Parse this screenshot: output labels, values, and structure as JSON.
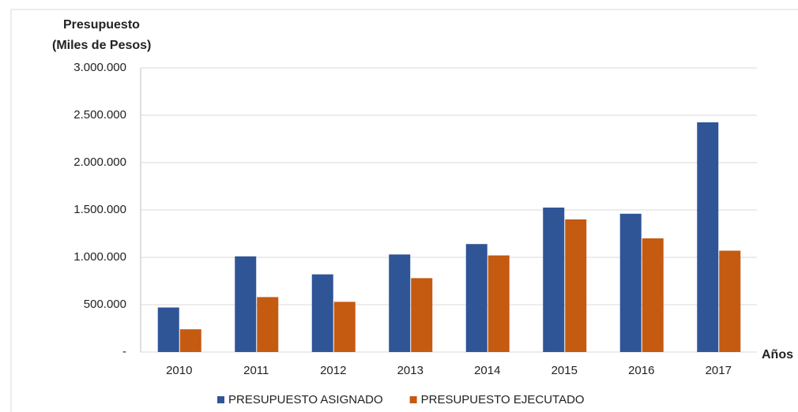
{
  "chart_data": {
    "type": "bar",
    "y_label": [
      "Presupuesto",
      "(Miles de Pesos)"
    ],
    "x_label": "Años",
    "categories": [
      "2010",
      "2011",
      "2012",
      "2013",
      "2014",
      "2015",
      "2016",
      "2017"
    ],
    "series": [
      {
        "name": "PRESUPUESTO ASIGNADO",
        "color": "#2f5597",
        "values": [
          470000,
          1010000,
          820000,
          1030000,
          1140000,
          1525000,
          1460000,
          2425000
        ]
      },
      {
        "name": "PRESUPUESTO EJECUTADO",
        "color": "#c55a11",
        "values": [
          240000,
          580000,
          530000,
          780000,
          1020000,
          1400000,
          1200000,
          1070000
        ]
      }
    ],
    "ylim": [
      0,
      3000000
    ],
    "yticks": [
      {
        "value": 0,
        "label": "-"
      },
      {
        "value": 500000,
        "label": "500.000"
      },
      {
        "value": 1000000,
        "label": "1.000.000"
      },
      {
        "value": 1500000,
        "label": "1.500.000"
      },
      {
        "value": 2000000,
        "label": "2.000.000"
      },
      {
        "value": 2500000,
        "label": "2.500.000"
      },
      {
        "value": 3000000,
        "label": "3.000.000"
      }
    ],
    "grid": true,
    "legend": "bottom"
  }
}
